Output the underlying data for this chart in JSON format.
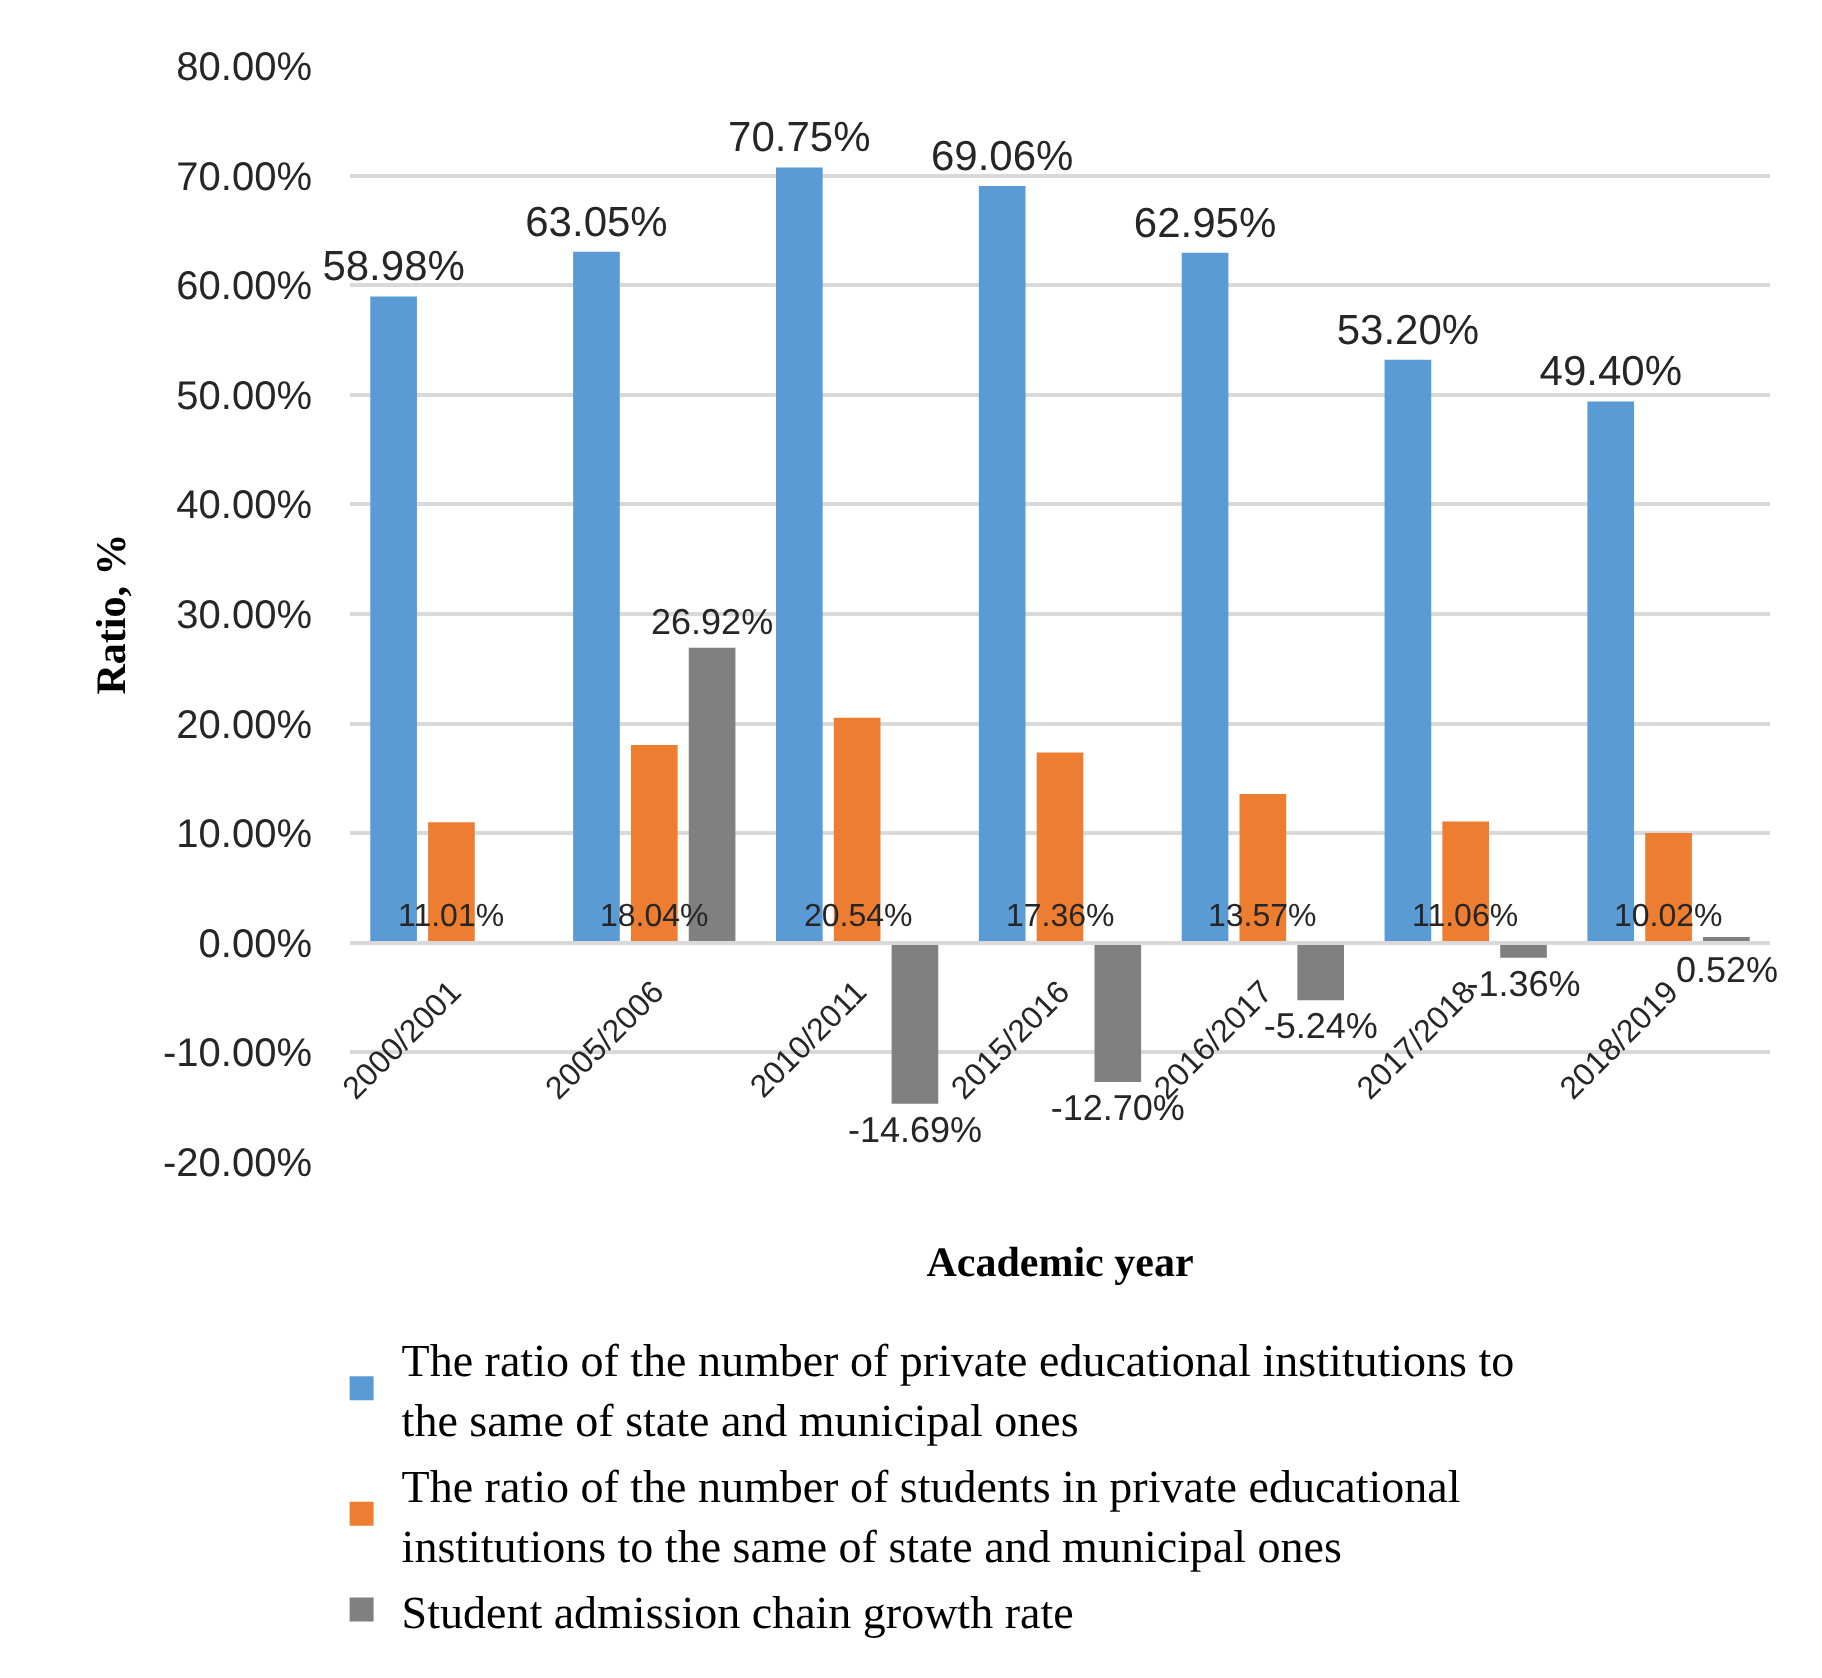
{
  "chart_data": {
    "type": "bar",
    "xlabel": "Academic year",
    "ylabel": "Ratio, %",
    "categories": [
      "2000/2001",
      "2005/2006",
      "2010/2011",
      "2015/2016",
      "2016/2017",
      "2017/2018",
      "2018/2019"
    ],
    "series": [
      {
        "name": "The ratio of the number of private educational institutions to the same of state and municipal ones",
        "color": "#5b9bd5",
        "values": [
          58.98,
          63.05,
          70.75,
          69.06,
          62.95,
          53.2,
          49.4
        ],
        "value_labels": [
          "58.98%",
          "63.05%",
          "70.75%",
          "69.06%",
          "62.95%",
          "53.20%",
          "49.40%"
        ]
      },
      {
        "name": "The ratio of the number of students in private educational institutions to the same of state and municipal ones",
        "color": "#ed7d31",
        "values": [
          11.01,
          18.04,
          20.54,
          17.36,
          13.57,
          11.06,
          10.02
        ],
        "value_labels": [
          "11.01%",
          "18.04%",
          "20.54%",
          "17.36%",
          "13.57%",
          "11.06%",
          "10.02%"
        ]
      },
      {
        "name": "Student admission chain growth rate",
        "color": "#808080",
        "values": [
          null,
          26.92,
          -14.69,
          -12.7,
          -5.24,
          -1.36,
          0.52
        ],
        "value_labels": [
          null,
          "26.92%",
          "-14.69%",
          "-12.70%",
          "-5.24%",
          "-1.36%",
          "0.52%"
        ]
      }
    ],
    "ylim": [
      -20,
      80
    ],
    "yticks": [
      {
        "value": -20,
        "label": "-20.00%"
      },
      {
        "value": -10,
        "label": "-10.00%"
      },
      {
        "value": 0,
        "label": "0.00%"
      },
      {
        "value": 10,
        "label": "10.00%"
      },
      {
        "value": 20,
        "label": "20.00%"
      },
      {
        "value": 30,
        "label": "30.00%"
      },
      {
        "value": 40,
        "label": "40.00%"
      },
      {
        "value": 50,
        "label": "50.00%"
      },
      {
        "value": 60,
        "label": "60.00%"
      },
      {
        "value": 70,
        "label": "70.00%"
      },
      {
        "value": 80,
        "label": "80.00%"
      }
    ],
    "grid": "y",
    "legend": "bottom"
  }
}
